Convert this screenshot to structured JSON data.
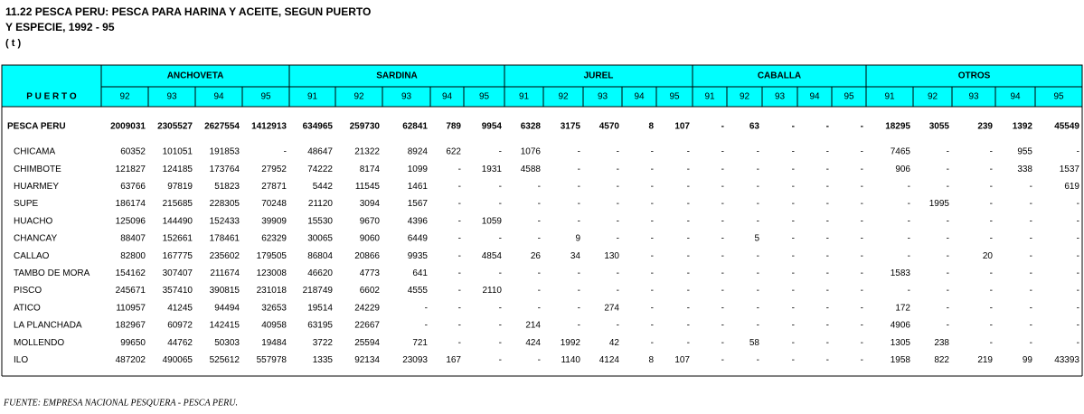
{
  "header": {
    "title_lines": [
      "11.22 PESCA PERU: PESCA PARA HARINA Y ACEITE, SEGUN PUERTO",
      "Y ESPECIE, 1992 - 95",
      "( t )"
    ]
  },
  "table": {
    "row_header": "P U E R T O",
    "groups": [
      {
        "label": "ANCHOVETA",
        "years": [
          "92",
          "93",
          "94",
          "95"
        ]
      },
      {
        "label": "SARDINA",
        "years": [
          "91",
          "92",
          "93",
          "94",
          "95"
        ]
      },
      {
        "label": "JUREL",
        "years": [
          "91",
          "92",
          "93",
          "94",
          "95"
        ]
      },
      {
        "label": "CABALLA",
        "years": [
          "91",
          "92",
          "93",
          "94",
          "95"
        ]
      },
      {
        "label": "OTROS",
        "years": [
          "91",
          "92",
          "93",
          "94",
          "95"
        ]
      }
    ],
    "rows": [
      {
        "puerto": "PESCA PERU",
        "values": [
          2009031,
          2305527,
          2627554,
          1412913,
          634965,
          259730,
          62841,
          789,
          9954,
          6328,
          3175,
          4570,
          8,
          107,
          "-",
          63,
          "-",
          "-",
          "-",
          18295,
          3055,
          239,
          1392,
          45549
        ]
      },
      {
        "puerto": "CHICAMA",
        "values": [
          60352,
          101051,
          191853,
          "-",
          48647,
          21322,
          8924,
          622,
          "-",
          1076,
          "-",
          "-",
          "-",
          "-",
          "-",
          "-",
          "-",
          "-",
          "-",
          7465,
          "-",
          "-",
          955,
          "-"
        ]
      },
      {
        "puerto": "CHIMBOTE",
        "values": [
          121827,
          124185,
          173764,
          27952,
          74222,
          8174,
          1099,
          "-",
          1931,
          4588,
          "-",
          "-",
          "-",
          "-",
          "-",
          "-",
          "-",
          "-",
          "-",
          906,
          "-",
          "-",
          338,
          1537
        ]
      },
      {
        "puerto": "HUARMEY",
        "values": [
          63766,
          97819,
          51823,
          27871,
          5442,
          11545,
          1461,
          "-",
          "-",
          "-",
          "-",
          "-",
          "-",
          "-",
          "-",
          "-",
          "-",
          "-",
          "-",
          "-",
          "-",
          "-",
          "-",
          619
        ]
      },
      {
        "puerto": "SUPE",
        "values": [
          186174,
          215685,
          228305,
          70248,
          21120,
          3094,
          1567,
          "-",
          "-",
          "-",
          "-",
          "-",
          "-",
          "-",
          "-",
          "-",
          "-",
          "-",
          "-",
          "-",
          1995,
          "-",
          "-",
          "-"
        ]
      },
      {
        "puerto": "HUACHO",
        "values": [
          125096,
          144490,
          152433,
          39909,
          15530,
          9670,
          4396,
          "-",
          1059,
          "-",
          "-",
          "-",
          "-",
          "-",
          "-",
          "-",
          "-",
          "-",
          "-",
          "-",
          "-",
          "-",
          "-",
          "-"
        ]
      },
      {
        "puerto": "CHANCAY",
        "values": [
          88407,
          152661,
          178461,
          62329,
          30065,
          9060,
          6449,
          "-",
          "-",
          "-",
          9,
          "-",
          "-",
          "-",
          "-",
          5,
          "-",
          "-",
          "-",
          "-",
          "-",
          "-",
          "-",
          "-"
        ]
      },
      {
        "puerto": "CALLAO",
        "values": [
          82800,
          167775,
          235602,
          179505,
          86804,
          20866,
          9935,
          "-",
          4854,
          26,
          34,
          130,
          "-",
          "-",
          "-",
          "-",
          "-",
          "-",
          "-",
          "-",
          "-",
          20,
          "-",
          "-"
        ]
      },
      {
        "puerto": "TAMBO DE MORA",
        "values": [
          154162,
          307407,
          211674,
          123008,
          46620,
          4773,
          641,
          "-",
          "-",
          "-",
          "-",
          "-",
          "-",
          "-",
          "-",
          "-",
          "-",
          "-",
          "-",
          1583,
          "-",
          "-",
          "-",
          "-"
        ]
      },
      {
        "puerto": "PISCO",
        "values": [
          245671,
          357410,
          390815,
          231018,
          218749,
          6602,
          4555,
          "-",
          2110,
          "-",
          "-",
          "-",
          "-",
          "-",
          "-",
          "-",
          "-",
          "-",
          "-",
          "-",
          "-",
          "-",
          "-",
          "-"
        ]
      },
      {
        "puerto": "ATICO",
        "values": [
          110957,
          41245,
          94494,
          32653,
          19514,
          24229,
          "-",
          "-",
          "-",
          "-",
          "-",
          274,
          "-",
          "-",
          "-",
          "-",
          "-",
          "-",
          "-",
          172,
          "-",
          "-",
          "-",
          "-"
        ]
      },
      {
        "puerto": "LA PLANCHADA",
        "values": [
          182967,
          60972,
          142415,
          40958,
          63195,
          22667,
          "-",
          "-",
          "-",
          214,
          "-",
          "-",
          "-",
          "-",
          "-",
          "-",
          "-",
          "-",
          "-",
          4906,
          "-",
          "-",
          "-",
          "-"
        ]
      },
      {
        "puerto": "MOLLENDO",
        "values": [
          99650,
          44762,
          50303,
          19484,
          3722,
          25594,
          721,
          "-",
          "-",
          424,
          1992,
          42,
          "-",
          "-",
          "-",
          58,
          "-",
          "-",
          "-",
          1305,
          238,
          "-",
          "-",
          "-"
        ]
      },
      {
        "puerto": "ILO",
        "values": [
          487202,
          490065,
          525612,
          557978,
          1335,
          92134,
          23093,
          167,
          "-",
          "-",
          1140,
          4124,
          8,
          107,
          "-",
          "-",
          "-",
          "-",
          "-",
          1958,
          822,
          219,
          99,
          43393
        ]
      }
    ]
  },
  "footer": "FUENTE: EMPRESA NACIONAL PESQUERA - PESCA PERU."
}
